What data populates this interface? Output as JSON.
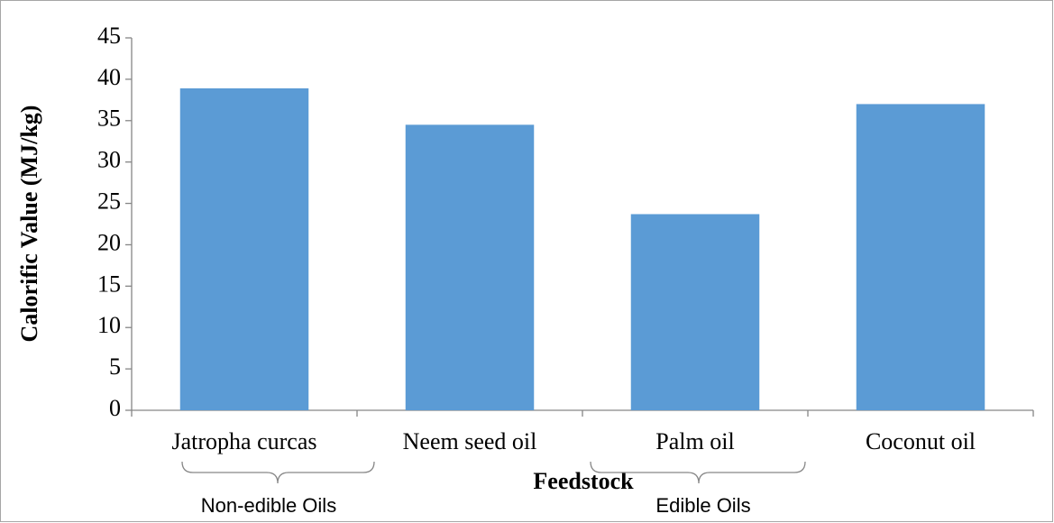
{
  "chart_data": {
    "type": "bar",
    "categories": [
      "Jatropha curcas",
      "Neem seed oil",
      "Palm oil",
      "Coconut oil"
    ],
    "values": [
      38.9,
      34.5,
      23.7,
      37.0
    ],
    "color": "#5b9bd5",
    "x_label": "Feedstock",
    "y_label": "Calorific Value (MJ/kg)",
    "ylim": [
      0,
      45
    ],
    "yticks": [
      0,
      5,
      10,
      15,
      20,
      25,
      30,
      35,
      40,
      45
    ],
    "grid": false,
    "annotations": [
      "Non-edible Oils",
      "Edible Oils"
    ]
  }
}
